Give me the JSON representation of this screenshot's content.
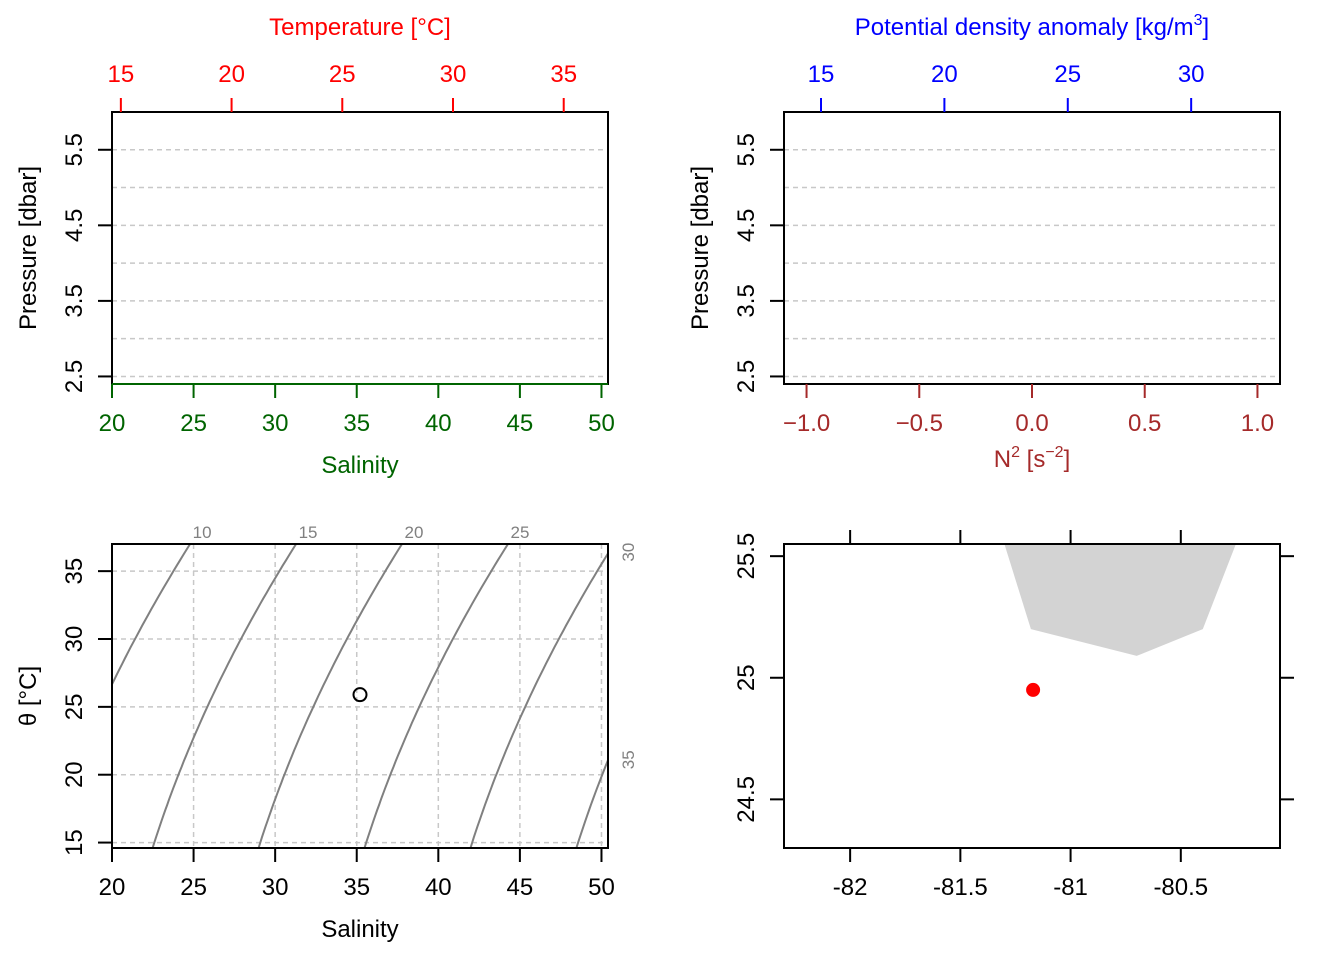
{
  "colors": {
    "temperature": "#ff0000",
    "salinity": "#006400",
    "density": "#0000ff",
    "n2": "#a52a2a",
    "grid": "#c8c8c8",
    "isopycnal": "#808080",
    "land": "#d3d3d3",
    "station": "#ff0000",
    "axis": "#000000"
  },
  "chart_data": [
    {
      "type": "line",
      "panel": "top-left",
      "x": [],
      "y": [],
      "top_axis": {
        "label": "Temperature [°C]",
        "ticks": [
          15,
          20,
          25,
          30,
          35
        ],
        "range": [
          14.6,
          37.0
        ]
      },
      "bottom_axis": {
        "label": "Salinity",
        "ticks": [
          20,
          25,
          30,
          35,
          40,
          45,
          50
        ],
        "range": [
          20,
          50.4
        ]
      },
      "y_axis": {
        "label": "Pressure [dbar]",
        "ticks": [
          2.5,
          3.5,
          4.5,
          5.5
        ],
        "range": [
          2.4,
          6.0
        ],
        "reversed": false
      },
      "grid": true
    },
    {
      "type": "line",
      "panel": "top-right",
      "x": [],
      "y": [],
      "top_axis": {
        "label_main": "Potential density anomaly [kg/m",
        "label_sup": "3",
        "label_end": "]",
        "ticks": [
          15,
          20,
          25,
          30
        ],
        "range": [
          13.5,
          33.6
        ]
      },
      "bottom_axis": {
        "label_main": "N",
        "label_sup": "2",
        "label_mid": " [s",
        "label_sup2": "−2",
        "label_end": "]",
        "ticks": [
          -1.0,
          -0.5,
          0.0,
          0.5,
          1.0
        ],
        "tick_labels": [
          "−1.0",
          "−0.5",
          "0.0",
          "0.5",
          "1.0"
        ],
        "range": [
          -1.1,
          1.1
        ]
      },
      "y_axis": {
        "label": "Pressure [dbar]",
        "ticks": [
          2.5,
          3.5,
          4.5,
          5.5
        ],
        "range": [
          2.4,
          6.0
        ]
      },
      "grid": true
    },
    {
      "type": "scatter",
      "panel": "bottom-left",
      "series": [
        {
          "x": [
            35.2
          ],
          "y": [
            25.9
          ]
        }
      ],
      "isopycnals": {
        "labels": [
          "10",
          "15",
          "20",
          "25",
          "30",
          "35"
        ]
      },
      "x_axis": {
        "label": "Salinity",
        "ticks": [
          20,
          25,
          30,
          35,
          40,
          45,
          50
        ],
        "range": [
          20,
          50.4
        ]
      },
      "y_axis": {
        "label": "θ [°C]",
        "ticks": [
          15,
          20,
          25,
          30,
          35
        ],
        "range": [
          14.6,
          37.0
        ]
      },
      "grid": true
    },
    {
      "type": "scatter",
      "panel": "bottom-right",
      "series": [
        {
          "x": [
            -81.17
          ],
          "y": [
            24.95
          ]
        }
      ],
      "land_polygon": [
        [
          -81.3,
          25.55
        ],
        [
          -80.25,
          25.55
        ],
        [
          -80.4,
          25.2
        ],
        [
          -80.7,
          25.09
        ],
        [
          -81.18,
          25.2
        ]
      ],
      "x_axis": {
        "ticks": [
          -82,
          -81.5,
          -81,
          -80.5
        ],
        "tick_labels": [
          "-82",
          "-81.5",
          "-81",
          "-80.5"
        ],
        "range": [
          -82.3,
          -80.05
        ]
      },
      "y_axis": {
        "ticks": [
          24.5,
          25,
          25.5
        ],
        "tick_labels": [
          "24.5",
          "25",
          "25.5"
        ],
        "range": [
          24.3,
          25.55
        ]
      },
      "grid": false
    }
  ]
}
